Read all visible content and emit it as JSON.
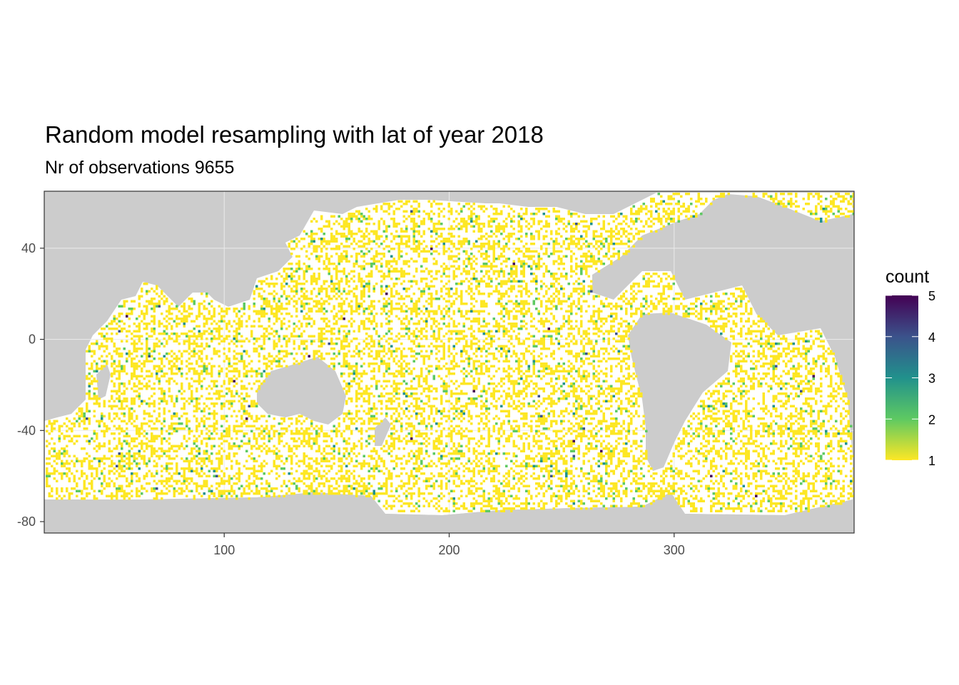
{
  "chart_data": {
    "type": "heatmap",
    "title": "Random model resampling with lat of year 2018",
    "subtitle": "Nr of observations 9655",
    "xlabel": "",
    "ylabel": "",
    "xlim": [
      20,
      380
    ],
    "ylim": [
      -85,
      65
    ],
    "x_ticks": [
      100,
      200,
      300
    ],
    "y_ticks": [
      40,
      0,
      -40,
      -80
    ],
    "x_tick_labels": [
      "100",
      "200",
      "300"
    ],
    "y_tick_labels": [
      "40",
      "0",
      "-40",
      "-80"
    ],
    "grid": true,
    "legend": {
      "title": "count",
      "placement": "right",
      "range": [
        1,
        5
      ],
      "ticks": [
        1,
        2,
        3,
        4,
        5
      ],
      "tick_labels": [
        "1",
        "2",
        "3",
        "4",
        "5"
      ],
      "palette": [
        "#fde725",
        "#5ec962",
        "#21918c",
        "#3b528b",
        "#440154"
      ]
    },
    "colors": {
      "land": "#cccccc",
      "ocean": "#ffffff",
      "panel_border": "#333333",
      "grid": "#ebebeb"
    },
    "total_observations": 9655
  }
}
